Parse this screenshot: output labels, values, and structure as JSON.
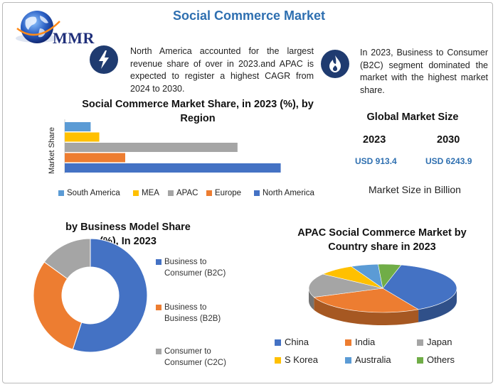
{
  "header": {
    "title": "Social Commerce Market",
    "logo_text": "MMR"
  },
  "info": [
    {
      "icon": "lightning-icon",
      "text": "North America accounted for the largest revenue share of over in 2023.and APAC is expected to register a highest CAGR from 2024 to 2030."
    },
    {
      "icon": "flame-icon",
      "text": "In 2023, Business to Consumer (B2C) segment dominated the market with the highest market share."
    }
  ],
  "global_market": {
    "title": "Global Market Size",
    "years": [
      "2023",
      "2030"
    ],
    "values": [
      "USD 913.4",
      "USD 6243.9"
    ],
    "unit_note": "Market Size in Billion"
  },
  "colors": {
    "blue": "#4472c4",
    "orange": "#ed7d31",
    "gray": "#a5a5a5",
    "yellow": "#ffc000",
    "light_blue": "#5b9bd5",
    "green": "#70ad47",
    "dark_navy": "#1f3b70",
    "title_blue": "#2e6fb0"
  },
  "chart_data": [
    {
      "type": "bar",
      "orientation": "horizontal",
      "title": "Social Commerce Market Share, in 2023 (%), by Region",
      "ylabel": "Market Share",
      "xlabel": "",
      "categories": [
        "South America",
        "MEA",
        "APAC",
        "Europe",
        "North America"
      ],
      "values": [
        6,
        8,
        40,
        14,
        50
      ],
      "colors": [
        "#5b9bd5",
        "#ffc000",
        "#a5a5a5",
        "#ed7d31",
        "#4472c4"
      ],
      "legend": "bottom",
      "legend_entries": [
        "South America",
        "MEA",
        "APAC",
        "Europe",
        "North America"
      ]
    },
    {
      "type": "pie",
      "variant": "donut",
      "title": "by Business Model Share (%), In 2023",
      "categories": [
        "Business to Consumer (B2C)",
        "Business to Business (B2B)",
        "Consumer to Consumer (C2C)"
      ],
      "legend_lines": [
        [
          "Business to",
          "Consumer (B2C)"
        ],
        [
          "Business to",
          "Business (B2B)"
        ],
        [
          "Consumer to",
          "Consumer (C2C)"
        ]
      ],
      "values": [
        55,
        30,
        15
      ],
      "colors": [
        "#4472c4",
        "#ed7d31",
        "#a5a5a5"
      ],
      "legend": "right"
    },
    {
      "type": "pie",
      "variant": "3d",
      "title": "APAC Social Commerce Market by Country share in 2023",
      "categories": [
        "China",
        "India",
        "Japan",
        "S Korea",
        "Australia",
        "Others"
      ],
      "values": [
        38,
        27,
        16,
        8,
        6,
        5
      ],
      "colors": [
        "#4472c4",
        "#ed7d31",
        "#a5a5a5",
        "#ffc000",
        "#5b9bd5",
        "#70ad47"
      ],
      "legend": "bottom"
    }
  ]
}
